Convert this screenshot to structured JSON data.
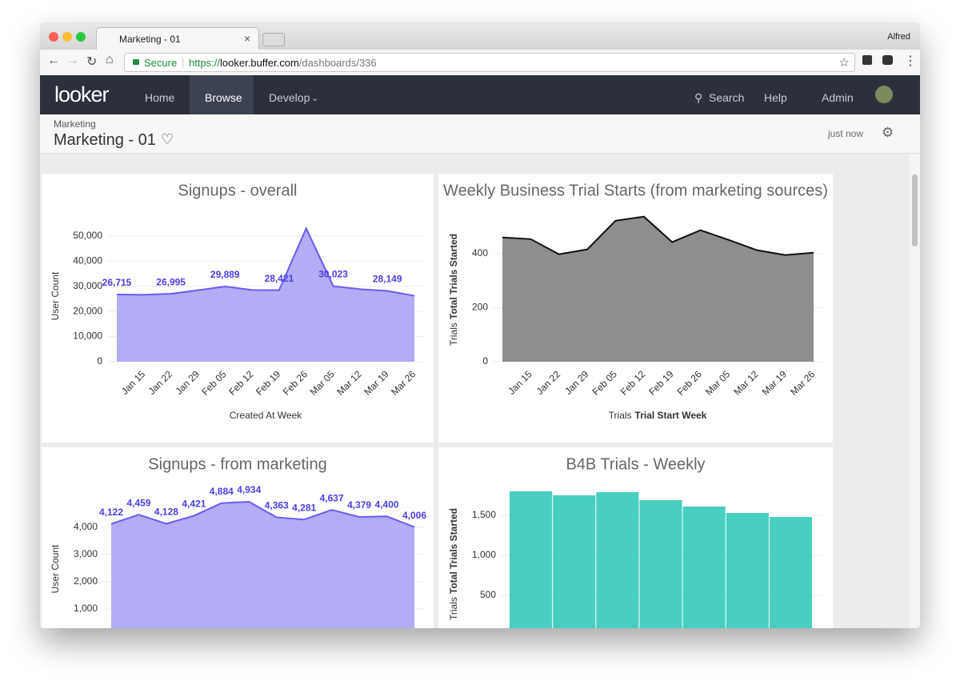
{
  "browser": {
    "tab_title": "Marketing - 01",
    "user": "Alfred",
    "secure": "Secure",
    "url_scheme": "https://",
    "url_host": "looker.buffer.com",
    "url_path": "/dashboards/336"
  },
  "nav": {
    "logo": "looker",
    "items": [
      "Home",
      "Browse",
      "Develop"
    ],
    "search": "Search",
    "help": "Help",
    "admin": "Admin"
  },
  "header": {
    "breadcrumb": "Marketing",
    "title": "Marketing - 01",
    "updated": "just now"
  },
  "charts": [
    {
      "type": "area",
      "title": "Signups - overall",
      "categories": [
        null,
        "Jan 15",
        "Jan 22",
        "Jan 29",
        "Feb 05",
        "Feb 12",
        "Feb 19",
        "Feb 26",
        "Mar 05",
        "Mar 12",
        "Mar 19",
        "Mar 26"
      ],
      "values": [
        26715,
        26600,
        26995,
        28400,
        29889,
        28500,
        28421,
        53000,
        30023,
        28800,
        28149,
        26200
      ],
      "value_labels": [
        "26,715",
        null,
        "26,995",
        null,
        "29,889",
        null,
        "28,421",
        null,
        "30,023",
        null,
        "28,149",
        null
      ],
      "color": "#b2adf5",
      "line_color": "#6a5cf0",
      "label_color": "#4b3ee6",
      "ylim": [
        0,
        55000
      ],
      "yticks": [
        0,
        {
          "value": 10000,
          "label": "10,000"
        },
        {
          "value": 20000,
          "label": "20,000"
        },
        {
          "value": 30000,
          "label": "30,000"
        },
        {
          "value": 40000,
          "label": "40,000"
        },
        {
          "value": 50000,
          "label": "50,000"
        }
      ],
      "y_label": "User Count",
      "x_label": "Created At Week",
      "grid": true
    },
    {
      "type": "area",
      "title": "Weekly Business Trial Starts (from marketing sources)",
      "categories": [
        null,
        "Jan 15",
        "Jan 22",
        "Jan 29",
        "Feb 05",
        "Feb 12",
        "Feb 19",
        "Feb 26",
        "Mar 05",
        "Mar 12",
        "Mar 19",
        "Mar 26"
      ],
      "values": [
        459,
        453,
        397,
        415,
        521,
        536,
        442,
        486,
        450,
        412,
        394,
        403
      ],
      "color": "#8e8e8e",
      "line_color": "#111111",
      "ylim": [
        0,
        550
      ],
      "yticks": [
        0,
        200,
        400
      ],
      "y_label_prefix": "Trials",
      "y_label": "Total Trials Started",
      "x_label_prefix": "Trials",
      "x_label": "Trial Start Week",
      "grid": true
    },
    {
      "type": "area",
      "title": "Signups - from marketing",
      "values": [
        4122,
        4459,
        4128,
        4421,
        4884,
        4934,
        4363,
        4281,
        4637,
        4379,
        4400,
        4006
      ],
      "value_labels": [
        "4,122",
        "4,459",
        "4,128",
        "4,421",
        "4,884",
        "4,934",
        "4,363",
        "4,281",
        "4,637",
        "4,379",
        "4,400",
        "4,006"
      ],
      "color": "#b2adf5",
      "line_color": "#6a5cf0",
      "label_color": "#4b3ee6",
      "ylim": [
        0,
        5200
      ],
      "yticks": [
        {
          "value": 1000,
          "label": "1,000"
        },
        {
          "value": 2000,
          "label": "2,000"
        },
        {
          "value": 3000,
          "label": "3,000"
        },
        {
          "value": 4000,
          "label": "4,000"
        }
      ],
      "y_label": "User Count",
      "grid": true
    },
    {
      "type": "bar",
      "title": "B4B Trials - Weekly",
      "values": [
        1800,
        1750,
        1790,
        1690,
        1610,
        1530,
        1480
      ],
      "color": "#48cfc0",
      "ylim": [
        0,
        2000
      ],
      "yticks": [
        500,
        {
          "value": 1000,
          "label": "1,000"
        },
        {
          "value": 1500,
          "label": "1,500"
        }
      ],
      "y_label_prefix": "Trials",
      "y_label": "Total Trials Started",
      "grid": true
    }
  ]
}
